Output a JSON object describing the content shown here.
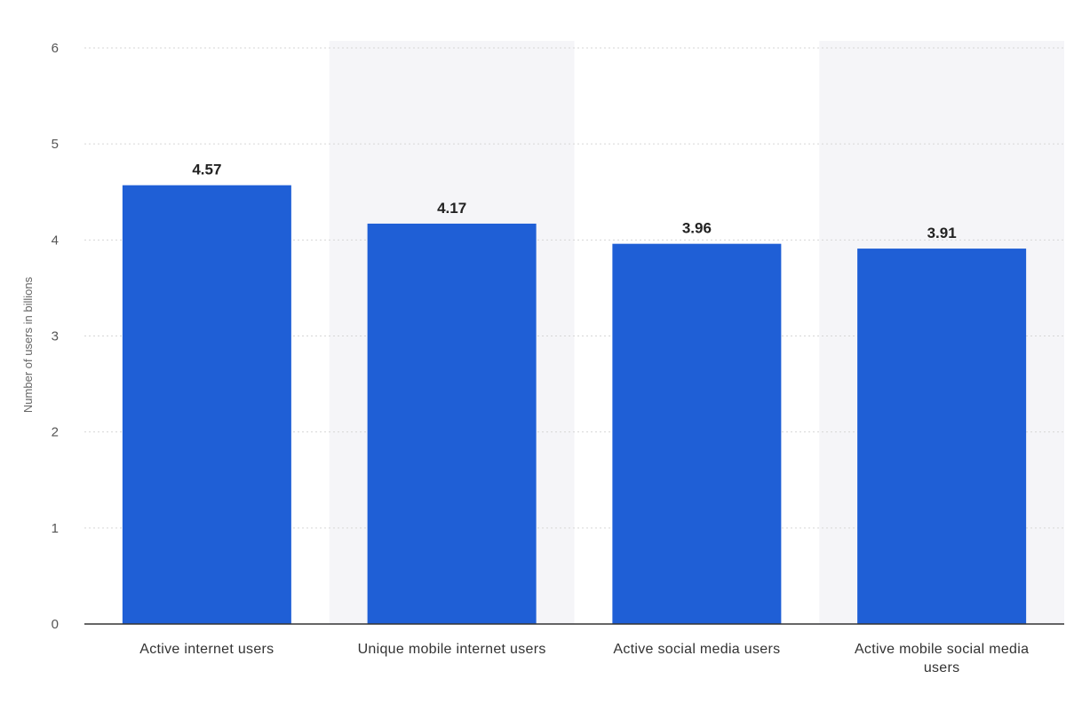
{
  "chart_data": {
    "type": "bar",
    "categories": [
      "Active internet users",
      "Unique mobile internet users",
      "Active social media users",
      "Active mobile social media users"
    ],
    "values": [
      4.57,
      4.17,
      3.96,
      3.91
    ],
    "value_labels": [
      "4.57",
      "4.17",
      "3.96",
      "3.91"
    ],
    "title": "",
    "xlabel": "",
    "ylabel": "Number of users in billions",
    "ylim": [
      0,
      6
    ],
    "yticks": [
      "0",
      "1",
      "2",
      "3",
      "4",
      "5",
      "6"
    ],
    "grid": true,
    "legend": "none",
    "bar_color": "#1f5fd6",
    "band_color": "#f5f5f8"
  }
}
